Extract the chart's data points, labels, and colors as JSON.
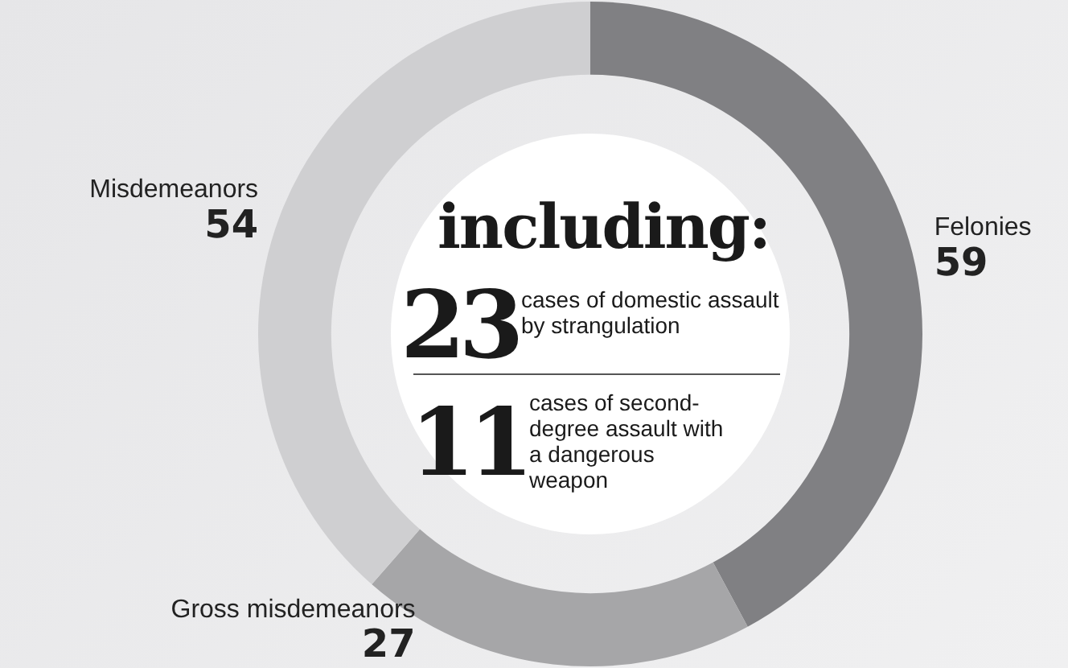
{
  "chart_data": {
    "type": "donut",
    "categories": [
      "Felonies",
      "Gross misdemeanors",
      "Misdemeanors"
    ],
    "values": [
      59,
      27,
      54
    ],
    "colors": [
      "#808083",
      "#a6a6a8",
      "#cfcfd1"
    ],
    "data_labels": true,
    "legend": false,
    "annotations": [
      "including:",
      "23",
      "cases of domestic assault by strangulation",
      "11",
      "cases of second-degree assault with a dangerous weapon"
    ]
  }
}
